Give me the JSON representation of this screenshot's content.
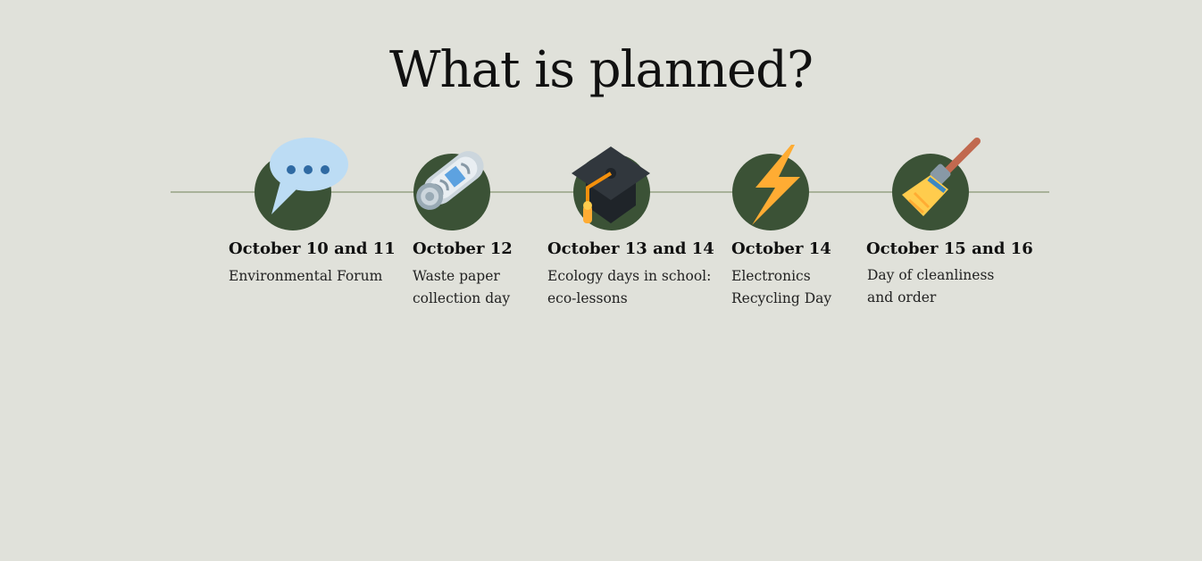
{
  "title": "What is planned?",
  "colors": {
    "background": "#e0e1da",
    "node": "#3b5236",
    "line": "#a9b29a"
  },
  "events": [
    {
      "date": "October 10 and 11",
      "description_lines": [
        "Environmental Forum"
      ],
      "icon": "speech-bubble-icon"
    },
    {
      "date": "October 12",
      "description_lines": [
        "Waste paper",
        "collection day"
      ],
      "icon": "rolled-newspaper-icon"
    },
    {
      "date": "October 13 and 14",
      "description_lines": [
        "Ecology days in school:",
        "eco-lessons"
      ],
      "icon": "graduation-cap-icon"
    },
    {
      "date": "October 14",
      "description_lines": [
        "Electronics",
        "Recycling Day"
      ],
      "icon": "lightning-icon"
    },
    {
      "date": "October 15 and 16",
      "description_lines": [
        "Day of cleanliness",
        "and order"
      ],
      "icon": "broom-icon"
    }
  ]
}
